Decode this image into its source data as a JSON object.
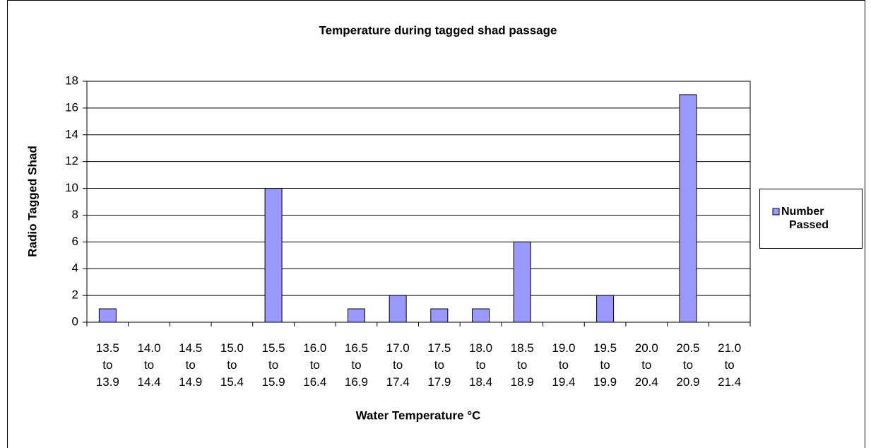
{
  "chart_data": {
    "type": "bar",
    "title": "Temperature during tagged shad passage",
    "x_label": "Water Temperature °C",
    "y_label": "Radio Tagged Shad",
    "categories": [
      "13.5 to 13.9",
      "14.0 to 14.4",
      "14.5 to 14.9",
      "15.0 to 15.4",
      "15.5 to 15.9",
      "16.0 to 16.4",
      "16.5 to 16.9",
      "17.0 to 17.4",
      "17.5 to 17.9",
      "18.0 to 18.4",
      "18.5 to 18.9",
      "19.0 to 19.4",
      "19.5 to 19.9",
      "20.0 to 20.4",
      "20.5 to 20.9",
      "21.0 to 21.4"
    ],
    "series": [
      {
        "name": "Number Passed",
        "color": "#9999ff",
        "values": [
          1,
          0,
          0,
          0,
          10,
          0,
          1,
          2,
          1,
          1,
          6,
          0,
          2,
          0,
          17,
          0
        ]
      }
    ],
    "ylim": [
      0,
      18
    ],
    "yticks": [
      0,
      2,
      4,
      6,
      8,
      10,
      12,
      14,
      16,
      18
    ],
    "grid": true,
    "legend": "right"
  }
}
